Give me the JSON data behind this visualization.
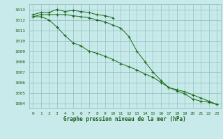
{
  "x": [
    0,
    1,
    2,
    3,
    4,
    5,
    6,
    7,
    8,
    9,
    10,
    11,
    12,
    13,
    14,
    15,
    16,
    17,
    18,
    19,
    20,
    21,
    22,
    23
  ],
  "line1": [
    1012.5,
    1012.7,
    1012.7,
    1013.0,
    1012.8,
    1012.9,
    1012.8,
    1012.7,
    1012.5,
    1012.4,
    1012.2,
    null,
    null,
    null,
    null,
    null,
    null,
    null,
    null,
    null,
    null,
    null,
    null,
    null
  ],
  "line2": [
    1012.3,
    1012.5,
    1012.5,
    1012.5,
    1012.5,
    1012.4,
    1012.3,
    1012.2,
    1012.0,
    1011.8,
    1011.5,
    1011.2,
    1010.4,
    1009.0,
    1008.0,
    1007.0,
    1006.2,
    1005.5,
    1005.2,
    1004.9,
    1004.4,
    1004.2,
    1004.1,
    1003.9
  ],
  "line3": [
    1012.3,
    1012.3,
    1012.0,
    1011.3,
    1010.5,
    1009.8,
    1009.5,
    1009.0,
    1008.8,
    1008.5,
    1008.2,
    1007.8,
    1007.5,
    1007.2,
    1006.8,
    1006.5,
    1006.0,
    1005.5,
    1005.3,
    1005.1,
    1004.8,
    1004.5,
    1004.2,
    1003.9
  ],
  "line_color": "#1a6a1a",
  "bg_color": "#c8eaea",
  "grid_minor_color": "#b8dede",
  "grid_major_color": "#90bcbc",
  "text_color": "#1a5c1a",
  "ylabel_values": [
    1004,
    1005,
    1006,
    1007,
    1008,
    1009,
    1010,
    1011,
    1012,
    1013
  ],
  "xlabel_label": "Graphe pression niveau de la mer (hPa)",
  "ylim": [
    1003.5,
    1013.5
  ],
  "xlim": [
    -0.5,
    23.5
  ]
}
